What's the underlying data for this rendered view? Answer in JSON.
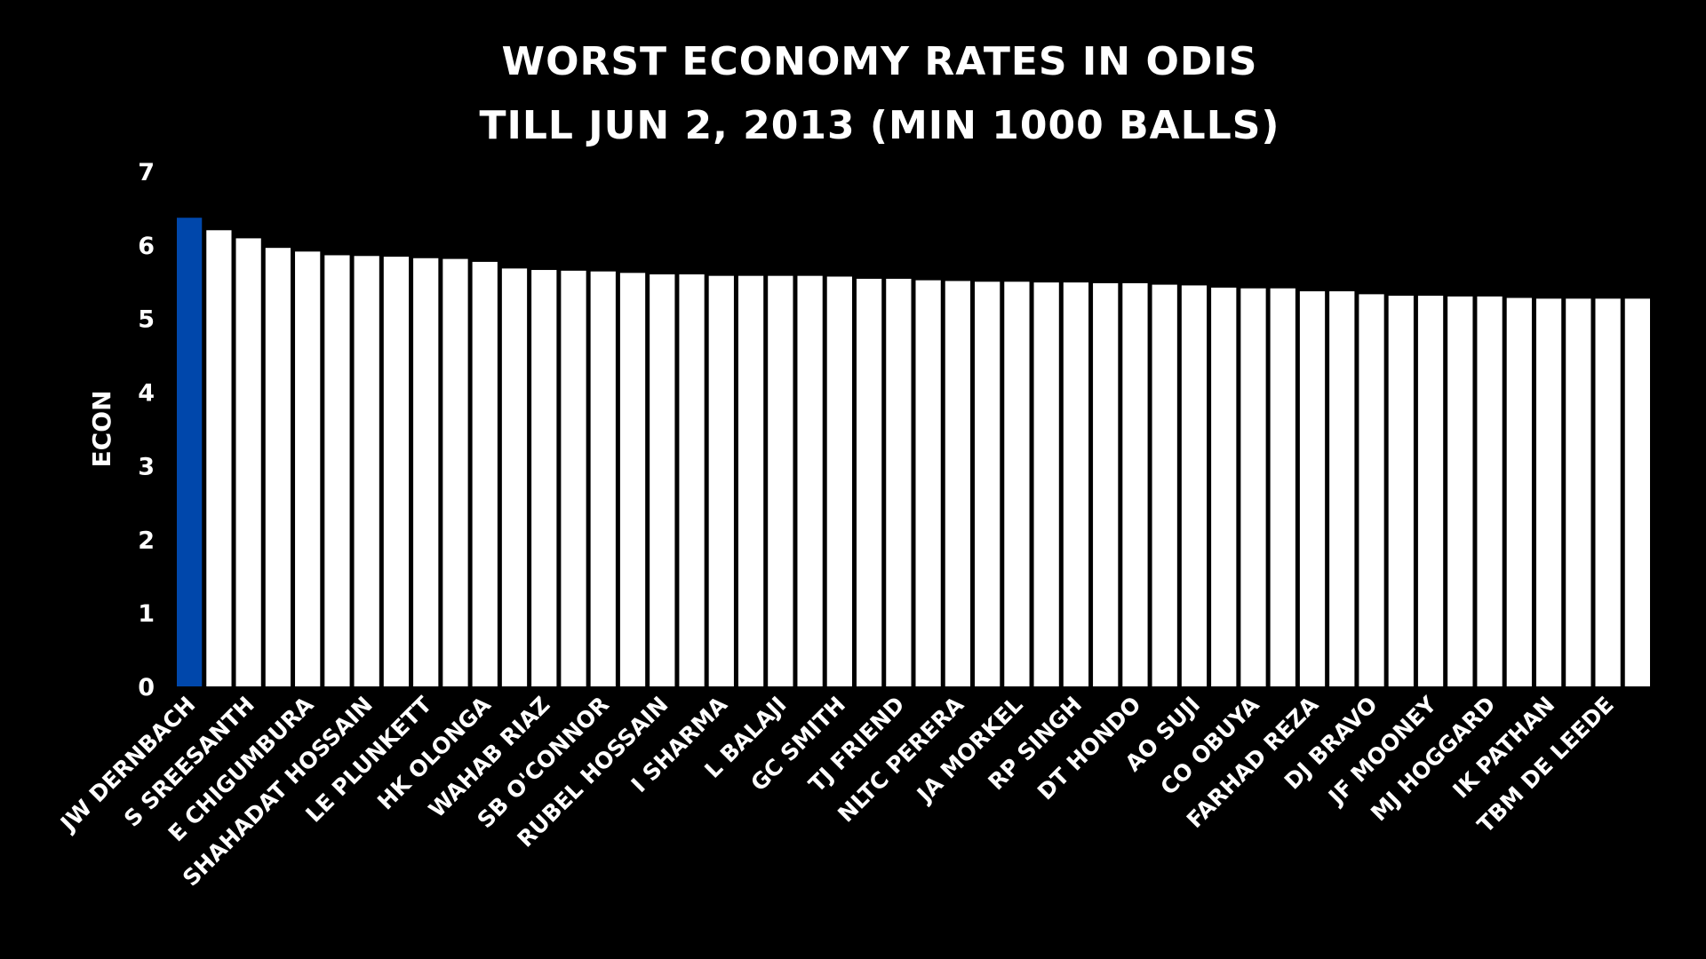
{
  "chart_data": {
    "type": "bar",
    "title": "WORST ECONOMY RATES IN ODIS",
    "subtitle": "TILL JUN 2, 2013 (MIN 1000 BALLS)",
    "xlabel": "",
    "ylabel": "ECON",
    "ylim": [
      0,
      7
    ],
    "yticks": [
      "0",
      "1",
      "2",
      "3",
      "4",
      "5",
      "6",
      "7"
    ],
    "grid": false,
    "highlight_color": "#0047AB",
    "bar_color": "#FFFFFF",
    "background_color": "#000000",
    "highlight_index": 0,
    "bar_count": 50,
    "values": [
      6.37,
      6.2,
      6.09,
      5.96,
      5.91,
      5.86,
      5.85,
      5.84,
      5.82,
      5.81,
      5.77,
      5.68,
      5.66,
      5.65,
      5.64,
      5.62,
      5.6,
      5.6,
      5.58,
      5.58,
      5.58,
      5.58,
      5.57,
      5.54,
      5.54,
      5.52,
      5.51,
      5.5,
      5.5,
      5.49,
      5.49,
      5.48,
      5.48,
      5.46,
      5.45,
      5.42,
      5.41,
      5.41,
      5.37,
      5.37,
      5.33,
      5.31,
      5.31,
      5.3,
      5.3,
      5.28,
      5.27,
      5.27,
      5.27,
      5.27
    ],
    "category_labels": [
      {
        "index": 0,
        "label": "JW DERNBACH"
      },
      {
        "index": 2,
        "label": "S SREESANTH"
      },
      {
        "index": 4,
        "label": "E CHIGUMBURA"
      },
      {
        "index": 6,
        "label": "SHAHADAT HOSSAIN"
      },
      {
        "index": 8,
        "label": "LE PLUNKETT"
      },
      {
        "index": 10,
        "label": "HK OLONGA"
      },
      {
        "index": 12,
        "label": "WAHAB RIAZ"
      },
      {
        "index": 14,
        "label": "SB O'CONNOR"
      },
      {
        "index": 16,
        "label": "RUBEL HOSSAIN"
      },
      {
        "index": 18,
        "label": "I SHARMA"
      },
      {
        "index": 20,
        "label": "L BALAJI"
      },
      {
        "index": 22,
        "label": "GC SMITH"
      },
      {
        "index": 24,
        "label": "TJ FRIEND"
      },
      {
        "index": 26,
        "label": "NLTC PERERA"
      },
      {
        "index": 28,
        "label": "JA MORKEL"
      },
      {
        "index": 30,
        "label": "RP SINGH"
      },
      {
        "index": 32,
        "label": "DT HONDO"
      },
      {
        "index": 34,
        "label": "AO SUJI"
      },
      {
        "index": 36,
        "label": "CO OBUYA"
      },
      {
        "index": 38,
        "label": "FARHAD REZA"
      },
      {
        "index": 40,
        "label": "DJ BRAVO"
      },
      {
        "index": 42,
        "label": "JF MOONEY"
      },
      {
        "index": 44,
        "label": "MJ HOGGARD"
      },
      {
        "index": 46,
        "label": "IK PATHAN"
      },
      {
        "index": 48,
        "label": "TBM DE LEEDE"
      }
    ]
  }
}
